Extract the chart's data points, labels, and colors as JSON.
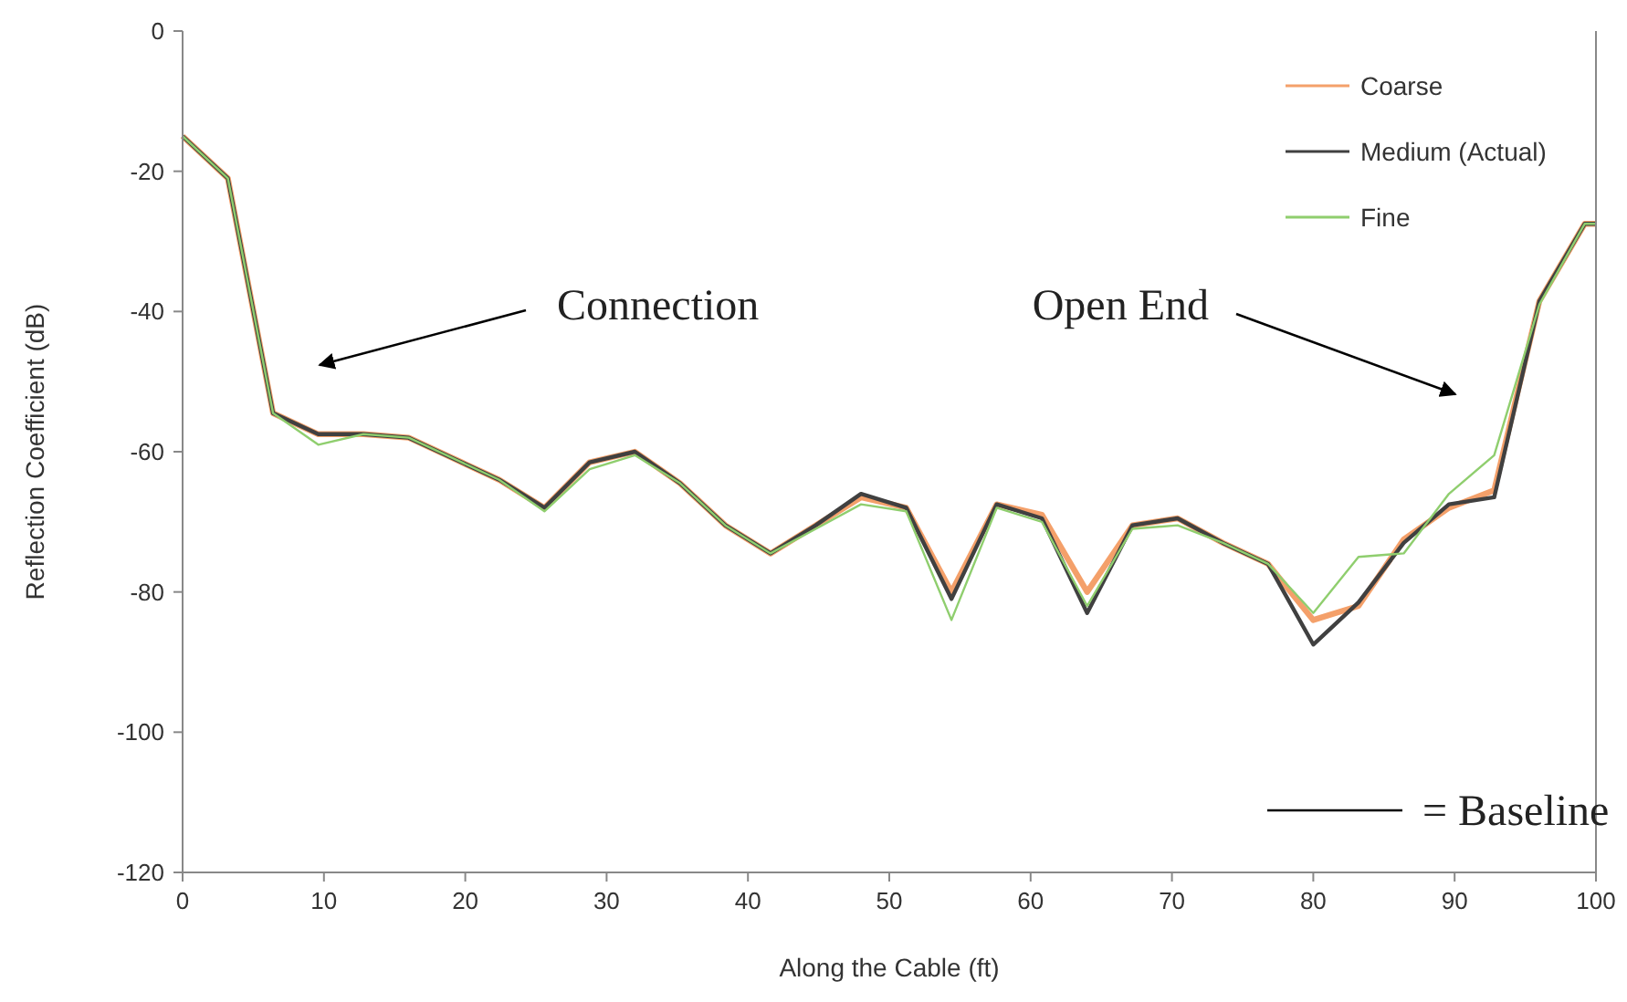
{
  "chart_data": {
    "type": "line",
    "xlabel": "Along the Cable (ft)",
    "ylabel": "Reflection Coefficient (dB)",
    "x": [
      0,
      3.2,
      6.4,
      9.6,
      12.8,
      16,
      19.2,
      22.4,
      25.6,
      28.8,
      32,
      35.2,
      38.4,
      41.6,
      44.8,
      48,
      51.2,
      54.4,
      57.6,
      60.8,
      64,
      67.2,
      70.4,
      73.6,
      76.8,
      80,
      83.2,
      86.4,
      89.6,
      92.8,
      96,
      99.2,
      100
    ],
    "series": [
      {
        "name": "Coarse",
        "color": "#f4a06a",
        "values": [
          -15,
          -21,
          -54.5,
          -57.5,
          -57.5,
          -58,
          -61,
          -64,
          -68,
          -61.5,
          -60,
          -64.5,
          -70.5,
          -74.5,
          -70.5,
          -66.5,
          -68,
          -80,
          -67.5,
          -69,
          -80,
          -70.5,
          -69.5,
          -73,
          -76,
          -84,
          -82,
          -72.5,
          -68,
          -65.5,
          -38.5,
          -27.5,
          -27.5
        ]
      },
      {
        "name": "Medium (Actual)",
        "color": "#404040",
        "values": [
          -15,
          -21,
          -54.5,
          -57.5,
          -57.5,
          -58,
          -61,
          -64,
          -68,
          -61.5,
          -60,
          -64.5,
          -70.5,
          -74.5,
          -70.5,
          -66,
          -68,
          -81,
          -67.5,
          -69.5,
          -83,
          -70.5,
          -69.5,
          -73,
          -76,
          -87.5,
          -81.5,
          -73,
          -67.5,
          -66.5,
          -38.5,
          -27.5,
          -27.5
        ]
      },
      {
        "name": "Fine",
        "color": "#8fce6e",
        "values": [
          -15,
          -21,
          -54.5,
          -59,
          -57.5,
          -58,
          -61,
          -64,
          -68.5,
          -62.5,
          -60.5,
          -64.5,
          -70.5,
          -74.5,
          -71,
          -67.5,
          -68.5,
          -84,
          -68,
          -70,
          -82,
          -71,
          -70.5,
          -73,
          -76,
          -83,
          -75,
          -74.5,
          -66,
          -60.5,
          -39,
          -27.5,
          -27.5
        ]
      }
    ],
    "xlim": [
      0,
      100
    ],
    "xticks": [
      0,
      10,
      20,
      30,
      40,
      50,
      60,
      70,
      80,
      90,
      100
    ],
    "ylim": [
      -120,
      0
    ],
    "yticks": [
      -120,
      -100,
      -80,
      -60,
      -40,
      -20,
      0
    ],
    "legend": "top right",
    "annotations": [
      "Connection",
      "Open End",
      "= Baseline"
    ]
  }
}
